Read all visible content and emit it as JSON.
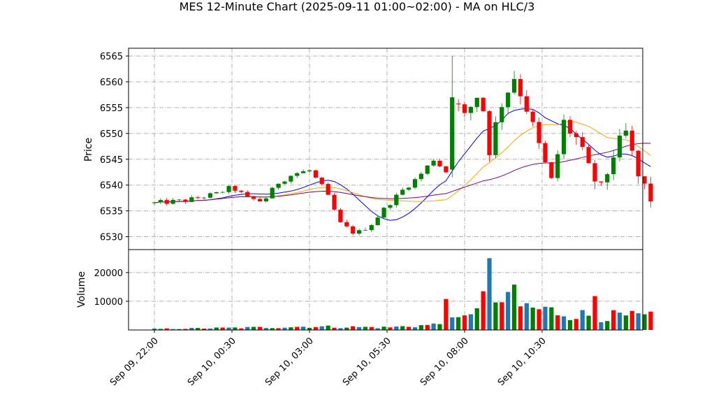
{
  "chart_data": {
    "type": "candlestick",
    "title": "MES 12-Minute Chart (2025-09-11 01:00~02:00) - MA on HLC/3",
    "price_panel": {
      "ylabel": "Price",
      "ylim": [
        6527.5,
        6566.5
      ],
      "yticks": [
        6530,
        6535,
        6540,
        6545,
        6550,
        6555,
        6560,
        6565
      ],
      "grid": true
    },
    "volume_panel": {
      "ylabel": "Volume",
      "ylim": [
        0,
        28000
      ],
      "yticks": [
        10000,
        20000
      ],
      "grid": true
    },
    "x_axis": {
      "start": "Sep 09, 22:00",
      "end": "Sep 10, 12:00",
      "interval_minutes": 12,
      "tick_labels": [
        "Sep 09, 22:00",
        "Sep 10, 00:30",
        "Sep 10, 03:00",
        "Sep 10, 05:30",
        "Sep 10, 08:00",
        "Sep 10, 10:30"
      ]
    },
    "price_path": [
      [
        "Sep 09, 22:00",
        6536.5
      ],
      [
        "Sep 09, 23:00",
        6537.0
      ],
      [
        "Sep 10, 00:00",
        6538.3
      ],
      [
        "Sep 10, 00:30",
        6539.6
      ],
      [
        "Sep 10, 01:00",
        6537.5
      ],
      [
        "Sep 10, 01:30",
        6536.8
      ],
      [
        "Sep 10, 02:00",
        6540.5
      ],
      [
        "Sep 10, 02:30",
        6542.2
      ],
      [
        "Sep 10, 03:00",
        6542.8
      ],
      [
        "Sep 10, 03:30",
        6539.0
      ],
      [
        "Sep 10, 04:00",
        6532.5
      ],
      [
        "Sep 10, 04:30",
        6530.5
      ],
      [
        "Sep 10, 05:00",
        6532.5
      ],
      [
        "Sep 10, 05:30",
        6536.0
      ],
      [
        "Sep 10, 06:00",
        6539.0
      ],
      [
        "Sep 10, 06:30",
        6541.5
      ],
      [
        "Sep 10, 07:00",
        6545.0
      ],
      [
        "Sep 10, 07:30",
        6542.0
      ],
      [
        "Sep 10, 07:36",
        6557.0
      ],
      [
        "Sep 10, 08:00",
        6553.0
      ],
      [
        "Sep 10, 08:30",
        6558.5
      ],
      [
        "Sep 10, 08:48",
        6547.0
      ],
      [
        "Sep 10, 09:12",
        6556.0
      ],
      [
        "Sep 10, 09:36",
        6561.0
      ],
      [
        "Sep 10, 10:00",
        6555.0
      ],
      [
        "Sep 10, 10:30",
        6545.5
      ],
      [
        "Sep 10, 10:48",
        6540.5
      ],
      [
        "Sep 10, 11:00",
        6546.0
      ],
      [
        "Sep 10, 11:12",
        6552.0
      ],
      [
        "Sep 10, 11:36",
        6549.0
      ],
      [
        "Sep 10, 12:00",
        6543.0
      ],
      [
        "Sep 10, 12:24",
        6539.0
      ],
      [
        "Sep 10, 12:48",
        6546.0
      ],
      [
        "Sep 10, 13:12",
        6550.0
      ],
      [
        "Sep 10, 13:36",
        6541.5
      ],
      [
        "Sep 10, 14:00",
        6537.5
      ],
      [
        "Sep 10, 14:00",
        6538.0
      ]
    ],
    "volume_path": [
      [
        "Sep 09, 22:00",
        350
      ],
      [
        "Sep 10, 01:00",
        800
      ],
      [
        "Sep 10, 03:00",
        1200
      ],
      [
        "Sep 10, 05:30",
        900
      ],
      [
        "Sep 10, 07:00",
        1800
      ],
      [
        "Sep 10, 07:30",
        2800
      ],
      [
        "Sep 10, 08:00",
        4000
      ],
      [
        "Sep 10, 08:30",
        12000
      ],
      [
        "Sep 10, 09:30",
        9000
      ],
      [
        "Sep 10, 10:30",
        7000
      ],
      [
        "Sep 10, 12:00",
        5000
      ],
      [
        "Sep 10, 14:00",
        4500
      ]
    ],
    "volume_spikes": [
      [
        "Sep 10, 07:24",
        10800
      ],
      [
        "Sep 10, 08:48",
        25000
      ],
      [
        "Sep 10, 09:36",
        15800
      ],
      [
        "Sep 10, 12:12",
        11800
      ],
      [
        "Sep 10, 14:00",
        6400
      ]
    ],
    "moving_averages": [
      {
        "window": "short",
        "color": "#0000ff"
      },
      {
        "window": "medium",
        "color": "#ffa500"
      },
      {
        "window": "long",
        "color": "#800080"
      }
    ],
    "colors": {
      "up_candle": "#008000",
      "down_candle": "#ff0000",
      "volume_bars": [
        "#1f77b4",
        "#008000",
        "#ff0000"
      ]
    }
  }
}
